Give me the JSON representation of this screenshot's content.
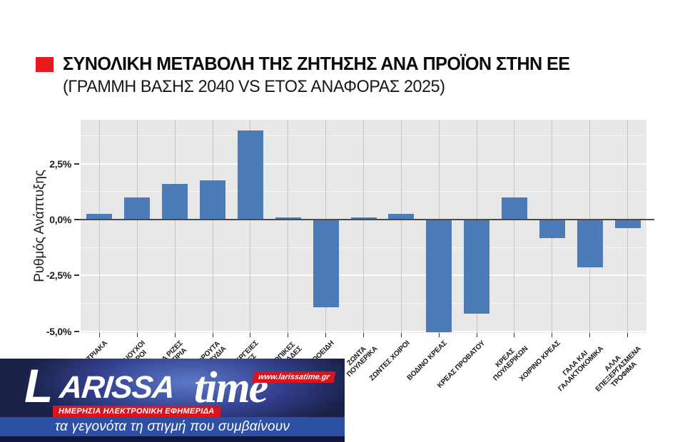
{
  "header": {
    "title": "ΣΥΝΟΛΙΚΗ ΜΕΤΑΒΟΛΗ ΤΗΣ ΖΗΤΗΣΗΣ ΑΝΑ ΠΡΟΪΟΝ ΣΤΗΝ ΕΕ",
    "subtitle": "(ΓΡΑΜΜΗ ΒΑΣΗΣ 2040 VS ΕΤΟΣ ΑΝΑΦΟΡΑΣ 2025)",
    "bullet_color": "#e8191d"
  },
  "chart_data": {
    "type": "bar",
    "title": "ΣΥΝΟΛΙΚΗ ΜΕΤΑΒΟΛΗ ΤΗΣ ΖΗΤΗΣΗΣ ΑΝΑ ΠΡΟΪΟΝ ΣΤΗΝ ΕΕ (ΓΡΑΜΜΗ ΒΑΣΗΣ 2040 VS ΕΤΟΣ ΑΝΑΦΟΡΑΣ 2025)",
    "categories": [
      "ΔΗΜΗΤΡΙΑΚΑ",
      "ΕΛΑΙΟΥΧΟΙ\nΣΠΟΡΟΙ",
      "Α ΡΙΖΕΣ\nΣΤΙΡΙΑ",
      "ΦΡΟΥΤΑ\nΚΑΡΥΔΙΑ",
      "ΚΑΛΛΙΕΡΓΕΙΕΣ\nΓΙΑ ΙΝΕΣ",
      "ΟΠΙΚΕΣ\nΟΜΑΔΕΣ",
      "ΖΩΝΤΑΝΑ ΒΟΟΕΙΔΗ",
      "ΖΩΝΤΑ\nΠΟΥΛΕΡΙΚΑ",
      "ΖΩΝΤΕΣ ΧΟΙΡΟΙ",
      "ΒΟΔΙΝΟ ΚΡΕΑΣ",
      "ΚΡΕΑΣ ΠΡΟΒΑΤΟΥ",
      "ΚΡΕΑΣ\nΠΟΥΛΕΡΙΚΩΝ",
      "ΧΟΙΡΙΝΟ ΚΡΕΑΣ",
      "ΓΑΛΑ ΚΑΙ\nΓΑΛΑΚΤΟΚΟΜΙΚΑ",
      "ΑΛΛΑ\nΕΠΕΞΕΡΓΑΣΜΕΝΑ\nΤΡΟΦΙΜΑ"
    ],
    "values": [
      0.25,
      1.0,
      1.6,
      1.75,
      4.0,
      0.1,
      -3.9,
      0.1,
      0.25,
      -5.0,
      -4.2,
      1.0,
      -0.8,
      -2.1,
      -0.35
    ],
    "xlabel": "",
    "ylabel": "Ρυθμός Ανάπτυξης",
    "ylim": [
      -5.55,
      4.47
    ],
    "grid": "on",
    "legend": "none",
    "yticks": [
      {
        "value": 2.5,
        "label": "2,5%"
      },
      {
        "value": 0,
        "label": "0,0%"
      },
      {
        "value": -2.5,
        "label": "-2,5%"
      },
      {
        "value": -5.0,
        "label": "-5,0%"
      }
    ],
    "grid_minor_values": [
      3.75,
      1.25,
      -1.25,
      -3.75
    ],
    "colors": {
      "bar": "#4b7cb8",
      "plot_background": "#e8e8e8",
      "grid_major": "#fdfdfd",
      "grid_minor": "#f4f4f4",
      "grid_vertical": "#c4c4c4",
      "zero_line": "#4b4b4b"
    }
  },
  "banner": {
    "logo_l": "L",
    "logo_main": "ARISSA",
    "logo_time": "time",
    "url_badge": "www.larissatime.gr",
    "red_strip": "ΗΜΕΡΗΣΙΑ ΗΛΕΚΤΡΟΝΙΚΗ ΕΦΗΜΕΡΙΔΑ",
    "tagline": "τα γεγονότα τη στιγμή που συμβαίνουν",
    "colors": {
      "navy": "#1a2148",
      "blue_strip": "#2e50a4",
      "red": "#d8141c"
    }
  }
}
